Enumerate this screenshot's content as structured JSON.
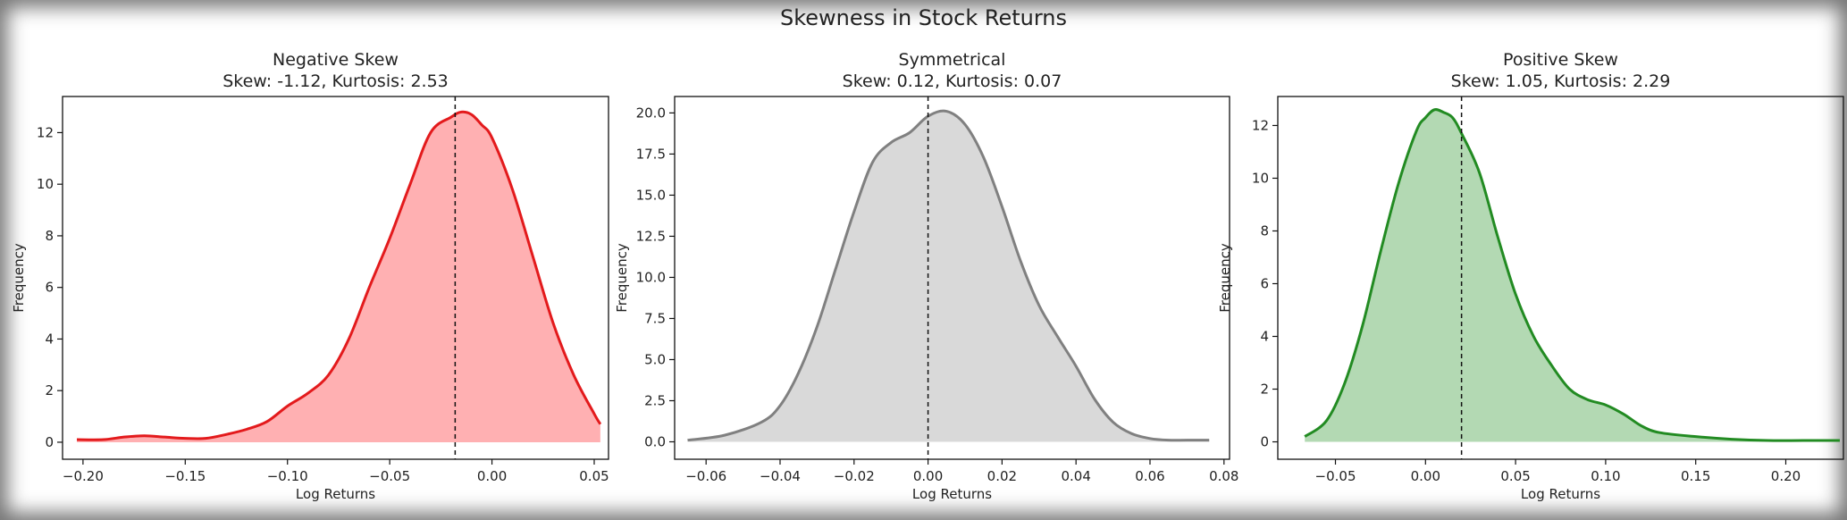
{
  "suptitle": "Skewness in Stock Returns",
  "chart_data": [
    {
      "type": "area",
      "title": "Negative Skew",
      "subtitle": "Skew: -1.12, Kurtosis: 2.53",
      "xlabel": "Log Returns",
      "ylabel": "Frequency",
      "xlim": [
        -0.21,
        0.057
      ],
      "ylim": [
        -0.66,
        13.4
      ],
      "xticks": [
        -0.2,
        -0.15,
        -0.1,
        -0.05,
        0.0,
        0.05
      ],
      "xtick_labels": [
        "−0.20",
        "−0.15",
        "−0.10",
        "−0.05",
        "0.00",
        "0.05"
      ],
      "yticks": [
        0,
        2,
        4,
        6,
        8,
        10,
        12
      ],
      "ytick_labels": [
        "0",
        "2",
        "4",
        "6",
        "8",
        "10",
        "12"
      ],
      "line_color": "#e31a1c",
      "fill_color": "#ffb0b2",
      "mean_line_x": -0.018,
      "x": [
        -0.203,
        -0.19,
        -0.18,
        -0.17,
        -0.16,
        -0.15,
        -0.14,
        -0.13,
        -0.12,
        -0.11,
        -0.1,
        -0.09,
        -0.08,
        -0.07,
        -0.06,
        -0.05,
        -0.04,
        -0.03,
        -0.02,
        -0.015,
        -0.01,
        -0.005,
        0.0,
        0.01,
        0.02,
        0.03,
        0.04,
        0.05,
        0.053
      ],
      "y": [
        0.1,
        0.1,
        0.2,
        0.25,
        0.2,
        0.15,
        0.15,
        0.3,
        0.5,
        0.8,
        1.4,
        1.9,
        2.6,
        4.0,
        6.0,
        7.9,
        10.0,
        12.0,
        12.6,
        12.8,
        12.7,
        12.3,
        11.8,
        9.8,
        7.2,
        4.6,
        2.6,
        1.1,
        0.7
      ]
    },
    {
      "type": "area",
      "title": "Symmetrical",
      "subtitle": "Skew: 0.12, Kurtosis: 0.07",
      "xlabel": "Log Returns",
      "ylabel": "Frequency",
      "xlim": [
        -0.0685,
        0.0815
      ],
      "ylim": [
        -1.06,
        21.0
      ],
      "xticks": [
        -0.06,
        -0.04,
        -0.02,
        0.0,
        0.02,
        0.04,
        0.06,
        0.08
      ],
      "xtick_labels": [
        "−0.06",
        "−0.04",
        "−0.02",
        "0.00",
        "0.02",
        "0.04",
        "0.06",
        "0.08"
      ],
      "yticks": [
        0,
        2.5,
        5,
        7.5,
        10,
        12.5,
        15,
        17.5,
        20
      ],
      "ytick_labels": [
        "0.0",
        "2.5",
        "5.0",
        "7.5",
        "10.0",
        "12.5",
        "15.0",
        "17.5",
        "20.0"
      ],
      "line_color": "#808080",
      "fill_color": "#d9d9d9",
      "mean_line_x": 0.0,
      "x": [
        -0.065,
        -0.055,
        -0.045,
        -0.04,
        -0.035,
        -0.03,
        -0.025,
        -0.02,
        -0.015,
        -0.01,
        -0.005,
        0.0,
        0.005,
        0.01,
        0.015,
        0.02,
        0.025,
        0.03,
        0.035,
        0.04,
        0.045,
        0.05,
        0.055,
        0.06,
        0.065,
        0.07,
        0.076
      ],
      "y": [
        0.1,
        0.4,
        1.2,
        2.2,
        4.2,
        7.0,
        10.5,
        14.0,
        17.0,
        18.2,
        18.8,
        19.8,
        20.1,
        19.3,
        17.3,
        14.3,
        11.0,
        8.3,
        6.4,
        4.6,
        2.6,
        1.2,
        0.5,
        0.2,
        0.1,
        0.1,
        0.1
      ]
    },
    {
      "type": "area",
      "title": "Positive Skew",
      "subtitle": "Skew: 1.05, Kurtosis: 2.29",
      "xlabel": "Log Returns",
      "ylabel": "Frequency",
      "xlim": [
        -0.082,
        0.232
      ],
      "ylim": [
        -0.66,
        13.1
      ],
      "xticks": [
        -0.05,
        0.0,
        0.05,
        0.1,
        0.15,
        0.2
      ],
      "xtick_labels": [
        "−0.05",
        "0.00",
        "0.05",
        "0.10",
        "0.15",
        "0.20"
      ],
      "yticks": [
        0,
        2,
        4,
        6,
        8,
        10,
        12
      ],
      "ytick_labels": [
        "0",
        "2",
        "4",
        "6",
        "8",
        "10",
        "12"
      ],
      "line_color": "#228b22",
      "fill_color": "#b3d9b3",
      "mean_line_x": 0.02,
      "x": [
        -0.067,
        -0.055,
        -0.045,
        -0.035,
        -0.025,
        -0.015,
        -0.005,
        0.0,
        0.005,
        0.01,
        0.015,
        0.02,
        0.03,
        0.04,
        0.05,
        0.06,
        0.07,
        0.08,
        0.09,
        0.1,
        0.11,
        0.12,
        0.13,
        0.15,
        0.17,
        0.19,
        0.21,
        0.23
      ],
      "y": [
        0.2,
        0.8,
        2.2,
        4.4,
        7.2,
        9.8,
        11.8,
        12.3,
        12.6,
        12.5,
        12.3,
        11.7,
        10.2,
        7.8,
        5.6,
        4.0,
        2.9,
        2.0,
        1.6,
        1.4,
        1.05,
        0.6,
        0.35,
        0.2,
        0.1,
        0.05,
        0.05,
        0.05
      ]
    }
  ]
}
